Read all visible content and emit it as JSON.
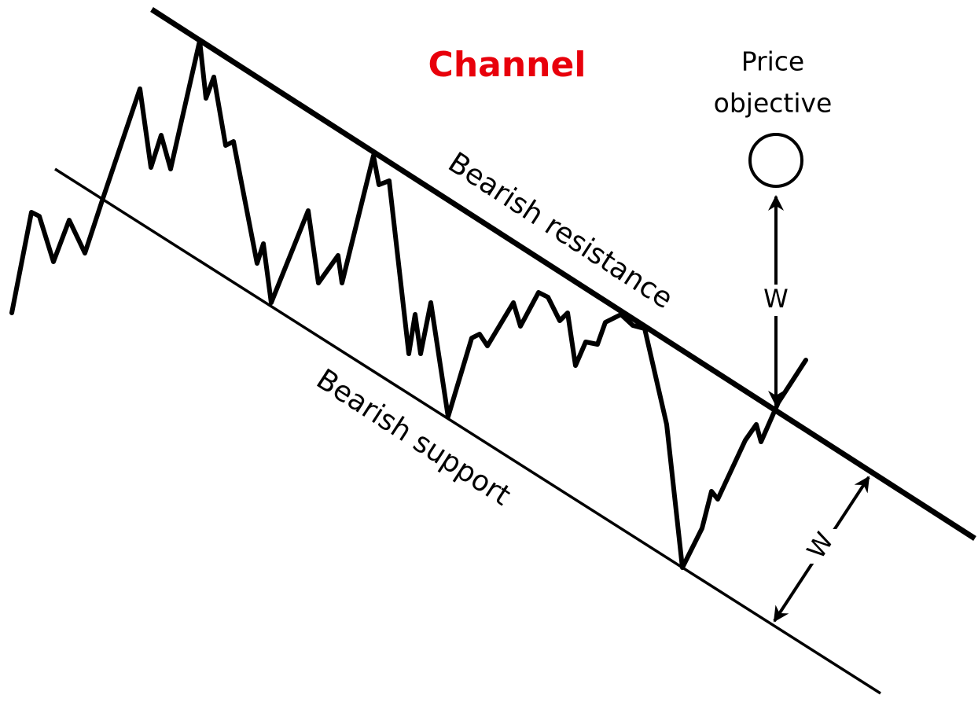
{
  "title": "Channel",
  "resistance_label": "Bearish resistance",
  "support_label": "Bearish support",
  "objective_label": [
    "Price",
    "objective"
  ],
  "width_labels": [
    "W",
    "W"
  ]
}
